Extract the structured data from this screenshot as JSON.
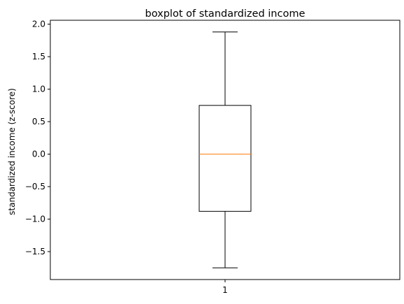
{
  "chart_data": {
    "type": "boxplot",
    "title": "boxplot of standardized income",
    "xlabel": "",
    "ylabel": "standardized income (z-score)",
    "categories": [
      "1"
    ],
    "boxes": [
      {
        "label": "1",
        "whisker_low": -1.75,
        "q1": -0.88,
        "median": 0.0,
        "q3": 0.75,
        "whisker_high": 1.88
      }
    ],
    "yticks": [
      -1.5,
      -1.0,
      -0.5,
      0.0,
      0.5,
      1.0,
      1.5,
      2.0
    ],
    "ytick_labels": [
      "−1.5",
      "−1.0",
      "−0.5",
      "0.0",
      "0.5",
      "1.0",
      "1.5",
      "2.0"
    ],
    "ylim": [
      -1.93,
      2.06
    ],
    "grid": false,
    "colors": {
      "box": "#000000",
      "median": "#ff7f0e",
      "background": "#ffffff"
    }
  }
}
